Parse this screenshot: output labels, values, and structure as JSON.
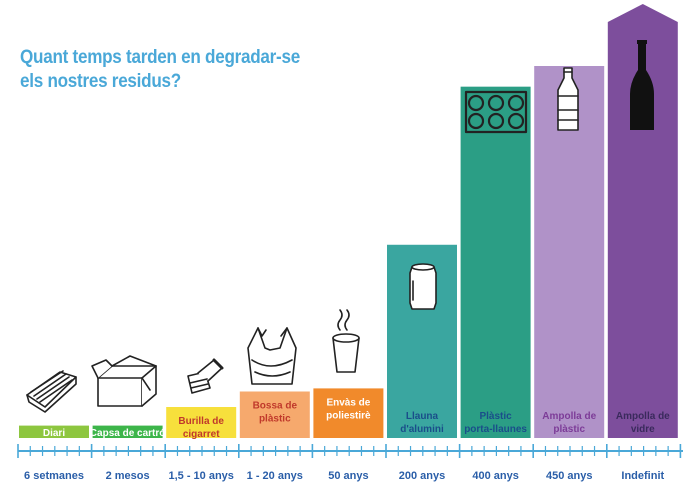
{
  "title_lines": [
    "Quant temps tarden en degradar-se",
    "els nostres residus?"
  ],
  "chart_data": {
    "type": "bar",
    "title": "Quant temps tarden en degradar-se els nostres residus?",
    "categories": [
      "Diari",
      "Capsa de cartró",
      "Burilla de cigarret",
      "Bossa de plàstic",
      "Envàs de poliestirè",
      "Llauna d'alumini",
      "Plàstic porta-llaunes",
      "Ampolla de plàstic",
      "Ampolla de vidre"
    ],
    "bar_label_lines": [
      [
        "Diari"
      ],
      [
        "Capsa de cartró"
      ],
      [
        "Burilla de",
        "cigarret"
      ],
      [
        "Bossa de",
        "plàstic"
      ],
      [
        "Envàs de",
        "poliestirè"
      ],
      [
        "Llauna",
        "d'alumini"
      ],
      [
        "Plàstic",
        "porta-llaunes"
      ],
      [
        "Ampolla de",
        "plàstic"
      ],
      [
        "Ampolla de",
        "vidre"
      ]
    ],
    "durations": [
      "6 setmanes",
      "2 mesos",
      "1,5 - 10 anys",
      "1 - 20 anys",
      "50 anys",
      "200 anys",
      "400 anys",
      "450 anys",
      "Indefinit"
    ],
    "values": [
      0.12,
      0.12,
      0.3,
      0.45,
      0.48,
      1.87,
      3.4,
      3.6,
      4.2
    ],
    "ylim": [
      0,
      4.2
    ],
    "colors": [
      "#8dc63f",
      "#3db54a",
      "#f7e03c",
      "#f6a96d",
      "#f18a2b",
      "#3aa6a0",
      "#2b9e85",
      "#b092c8",
      "#7d4e9c"
    ],
    "label_colors": [
      "#ffffff",
      "#ffffff",
      "#c0392b",
      "#c0392b",
      "#ffffff",
      "#1a4e8a",
      "#1a4e8a",
      "#7d3c98",
      "#3a2a5c"
    ],
    "icons": [
      "newspaper-icon",
      "cardboard-box-icon",
      "cigarette-butt-icon",
      "plastic-bag-icon",
      "foam-cup-icon",
      "aluminium-can-icon",
      "six-pack-rings-icon",
      "plastic-bottle-icon",
      "glass-bottle-icon"
    ],
    "axis_color": "#4aa8d8"
  }
}
